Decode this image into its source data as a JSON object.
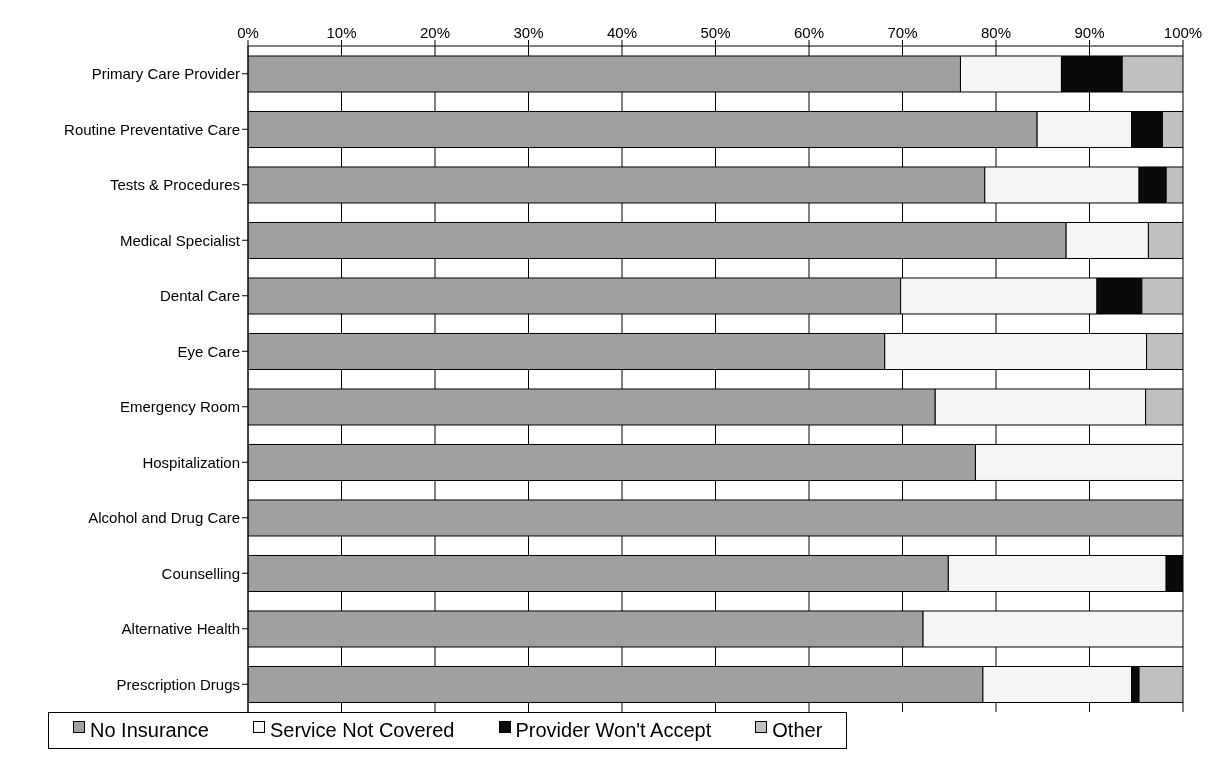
{
  "chart_data": {
    "type": "bar",
    "orientation": "horizontal",
    "stacked": true,
    "categories": [
      "Primary Care Provider",
      "Routine Preventative Care",
      "Tests & Procedures",
      "Medical Specialist",
      "Dental Care",
      "Eye Care",
      "Emergency Room",
      "Hospitalization",
      "Alcohol and Drug Care",
      "Counselling",
      "Alternative Health",
      "Prescription Drugs"
    ],
    "series": [
      {
        "name": "No Insurance",
        "color": "#a0a0a0",
        "values": [
          76.2,
          84.4,
          78.8,
          87.5,
          69.8,
          68.1,
          73.5,
          77.8,
          100,
          74.9,
          72.2,
          78.6
        ]
      },
      {
        "name": "Service Not Covered",
        "color": "#f5f5f5",
        "values": [
          10.8,
          10.1,
          16.5,
          8.8,
          21.0,
          28.0,
          22.5,
          22.2,
          0,
          23.3,
          27.8,
          15.9
        ]
      },
      {
        "name": "Provider Won't Accept",
        "color": "#0a0a0a",
        "values": [
          6.5,
          3.3,
          2.9,
          0,
          4.8,
          0,
          0,
          0,
          0,
          1.8,
          0,
          0.8
        ]
      },
      {
        "name": "Other",
        "color": "#c0c0c0",
        "values": [
          6.5,
          2.2,
          1.8,
          3.7,
          4.4,
          3.9,
          4.0,
          0,
          0,
          0,
          0,
          4.7
        ]
      }
    ],
    "xlim": [
      0,
      100
    ],
    "xticks": [
      {
        "value": 0,
        "label": "0%"
      },
      {
        "value": 10,
        "label": "10%"
      },
      {
        "value": 20,
        "label": "20%"
      },
      {
        "value": 30,
        "label": "30%"
      },
      {
        "value": 40,
        "label": "40%"
      },
      {
        "value": 50,
        "label": "50%"
      },
      {
        "value": 60,
        "label": "60%"
      },
      {
        "value": 70,
        "label": "70%"
      },
      {
        "value": 80,
        "label": "80%"
      },
      {
        "value": 90,
        "label": "90%"
      },
      {
        "value": 100,
        "label": "100%"
      }
    ],
    "grid": "x",
    "legend": "bottom"
  }
}
